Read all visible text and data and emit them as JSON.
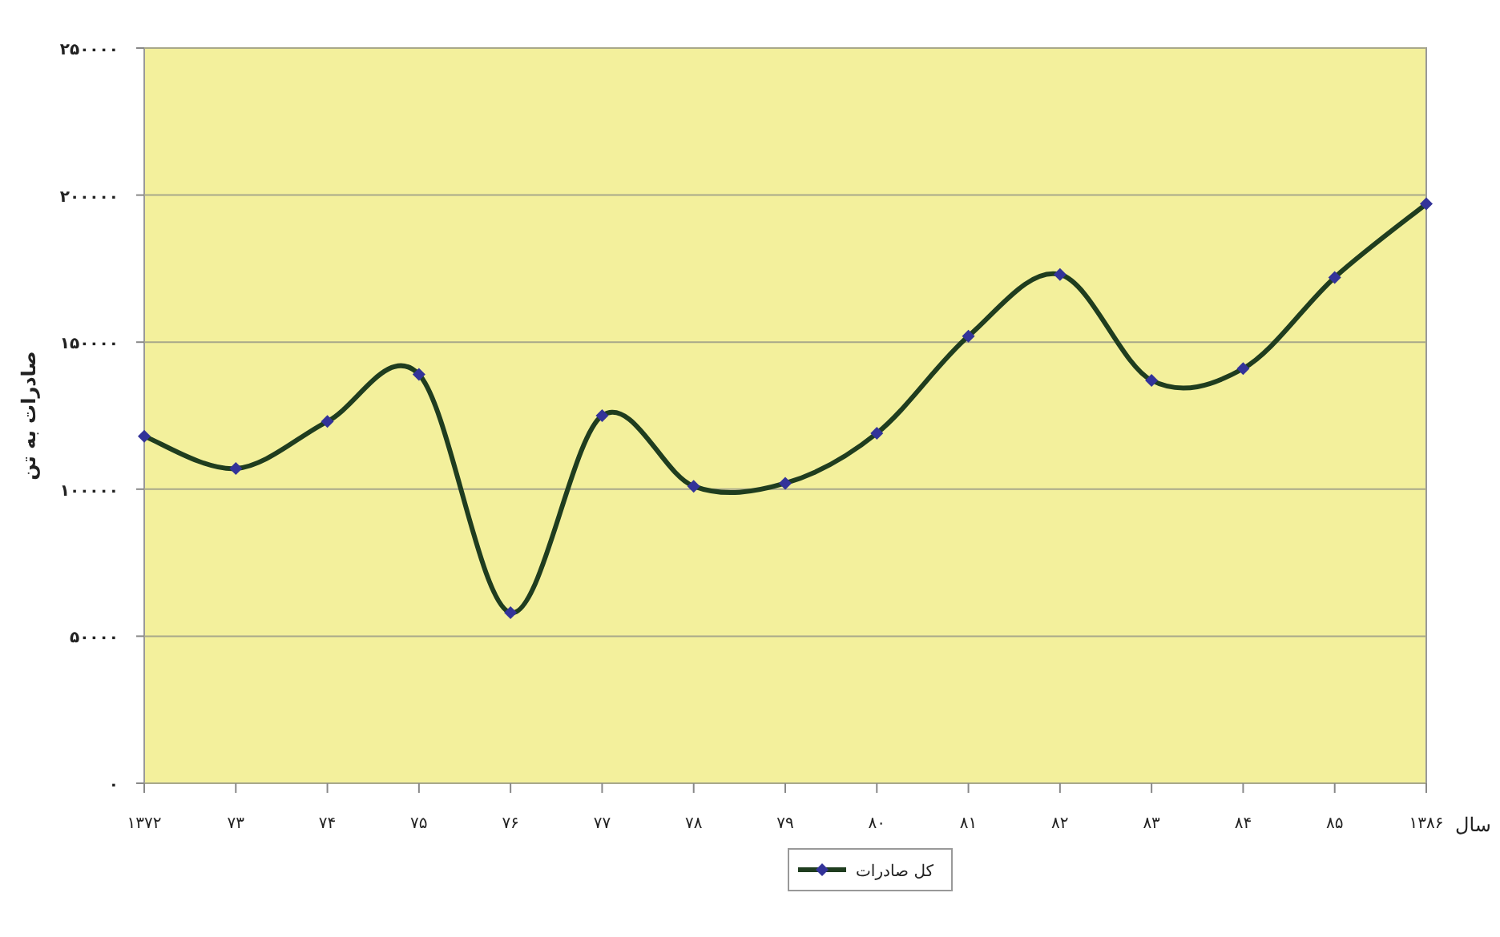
{
  "chart_data": {
    "type": "line",
    "ylabel": "صادرات به تن",
    "xlabel": "سال",
    "categories": [
      "۱۳۷۲",
      "۷۳",
      "۷۴",
      "۷۵",
      "۷۶",
      "۷۷",
      "۷۸",
      "۷۹",
      "۸۰",
      "۸۱",
      "۸۲",
      "۸۳",
      "۸۴",
      "۸۵",
      "۱۳۸۶"
    ],
    "series": [
      {
        "name": "کل صادرات",
        "color": "#1f3d1f",
        "values": [
          118000,
          107000,
          123000,
          139000,
          58000,
          125000,
          101000,
          102000,
          119000,
          152000,
          173000,
          137000,
          141000,
          172000,
          197000
        ]
      }
    ],
    "ylim": [
      0,
      250000
    ],
    "yticks": [
      {
        "value": 0,
        "label": "۰"
      },
      {
        "value": 50000,
        "label": "۵۰۰۰۰"
      },
      {
        "value": 100000,
        "label": "۱۰۰۰۰۰"
      },
      {
        "value": 150000,
        "label": "۱۵۰۰۰۰"
      },
      {
        "value": 200000,
        "label": "۲۰۰۰۰۰"
      },
      {
        "value": 250000,
        "label": "۲۵۰۰۰۰"
      }
    ],
    "grid": "y",
    "legend": "bottom",
    "marker": "diamond",
    "line_style": "solid"
  }
}
